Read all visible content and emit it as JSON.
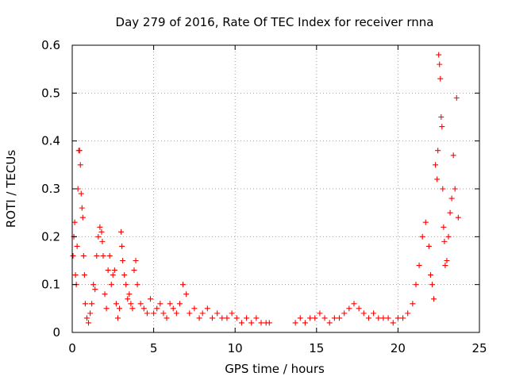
{
  "chart_data": {
    "type": "scatter",
    "title": "Day 279 of 2016, Rate Of TEC Index for receiver rnna",
    "xlabel": "GPS time / hours",
    "ylabel": "ROTI / TECUs",
    "xlim": [
      0,
      25
    ],
    "ylim": [
      0,
      0.6
    ],
    "xticks": [
      0,
      5,
      10,
      15,
      20,
      25
    ],
    "xtick_labels": [
      "0",
      "5",
      "10",
      "15",
      "20",
      "25"
    ],
    "yticks": [
      0,
      0.1,
      0.2,
      0.3,
      0.4,
      0.5,
      0.6
    ],
    "ytick_labels": [
      "0",
      "0.1",
      "0.2",
      "0.3",
      "0.4",
      "0.5",
      "0.6"
    ],
    "grid": true,
    "marker": "plus",
    "color": "#ff0000",
    "series": [
      {
        "name": "ROTI",
        "x": [
          0.05,
          0.1,
          0.15,
          0.2,
          0.25,
          0.3,
          0.35,
          0.4,
          0.45,
          0.5,
          0.55,
          0.6,
          0.65,
          0.7,
          0.75,
          0.8,
          0.9,
          1.0,
          1.1,
          1.2,
          1.3,
          1.4,
          1.5,
          1.6,
          1.7,
          1.8,
          1.85,
          1.9,
          2.0,
          2.1,
          2.2,
          2.3,
          2.4,
          2.5,
          2.6,
          2.7,
          2.8,
          2.9,
          3.0,
          3.05,
          3.1,
          3.2,
          3.3,
          3.4,
          3.5,
          3.6,
          3.7,
          3.8,
          3.9,
          4.0,
          4.2,
          4.4,
          4.6,
          4.8,
          5.0,
          5.2,
          5.4,
          5.6,
          5.8,
          6.0,
          6.2,
          6.4,
          6.6,
          6.8,
          7.0,
          7.2,
          7.5,
          7.8,
          8.0,
          8.3,
          8.6,
          8.9,
          9.2,
          9.5,
          9.8,
          10.1,
          10.4,
          10.7,
          11.0,
          11.3,
          11.6,
          11.9,
          12.1,
          13.7,
          14.0,
          14.3,
          14.6,
          14.9,
          15.2,
          15.5,
          15.8,
          16.1,
          16.4,
          16.7,
          17.0,
          17.3,
          17.6,
          17.9,
          18.2,
          18.5,
          18.8,
          19.1,
          19.4,
          19.7,
          20.0,
          20.3,
          20.6,
          20.9,
          21.1,
          21.3,
          21.5,
          21.7,
          21.9,
          22.0,
          22.1,
          22.2,
          22.3,
          22.4,
          22.45,
          22.5,
          22.55,
          22.6,
          22.65,
          22.7,
          22.75,
          22.8,
          22.85,
          22.9,
          23.0,
          23.1,
          23.2,
          23.3,
          23.4,
          23.5,
          23.6,
          23.7
        ],
        "y": [
          0.16,
          0.2,
          0.23,
          0.12,
          0.1,
          0.18,
          0.3,
          0.38,
          0.38,
          0.35,
          0.29,
          0.26,
          0.24,
          0.16,
          0.12,
          0.06,
          0.03,
          0.02,
          0.04,
          0.06,
          0.1,
          0.09,
          0.16,
          0.2,
          0.22,
          0.21,
          0.19,
          0.16,
          0.08,
          0.05,
          0.13,
          0.16,
          0.1,
          0.12,
          0.13,
          0.06,
          0.03,
          0.05,
          0.21,
          0.18,
          0.15,
          0.12,
          0.1,
          0.07,
          0.08,
          0.06,
          0.05,
          0.13,
          0.15,
          0.1,
          0.06,
          0.05,
          0.04,
          0.07,
          0.04,
          0.05,
          0.06,
          0.04,
          0.03,
          0.06,
          0.05,
          0.04,
          0.06,
          0.1,
          0.08,
          0.04,
          0.05,
          0.03,
          0.04,
          0.05,
          0.03,
          0.04,
          0.03,
          0.03,
          0.04,
          0.03,
          0.02,
          0.03,
          0.02,
          0.03,
          0.02,
          0.02,
          0.02,
          0.02,
          0.03,
          0.02,
          0.03,
          0.03,
          0.04,
          0.03,
          0.02,
          0.03,
          0.03,
          0.04,
          0.05,
          0.06,
          0.05,
          0.04,
          0.03,
          0.04,
          0.03,
          0.03,
          0.03,
          0.02,
          0.03,
          0.03,
          0.04,
          0.06,
          0.1,
          0.14,
          0.2,
          0.23,
          0.18,
          0.12,
          0.1,
          0.07,
          0.35,
          0.32,
          0.38,
          0.58,
          0.56,
          0.53,
          0.45,
          0.43,
          0.3,
          0.22,
          0.19,
          0.14,
          0.15,
          0.2,
          0.25,
          0.28,
          0.37,
          0.3,
          0.49,
          0.24
        ]
      }
    ]
  }
}
